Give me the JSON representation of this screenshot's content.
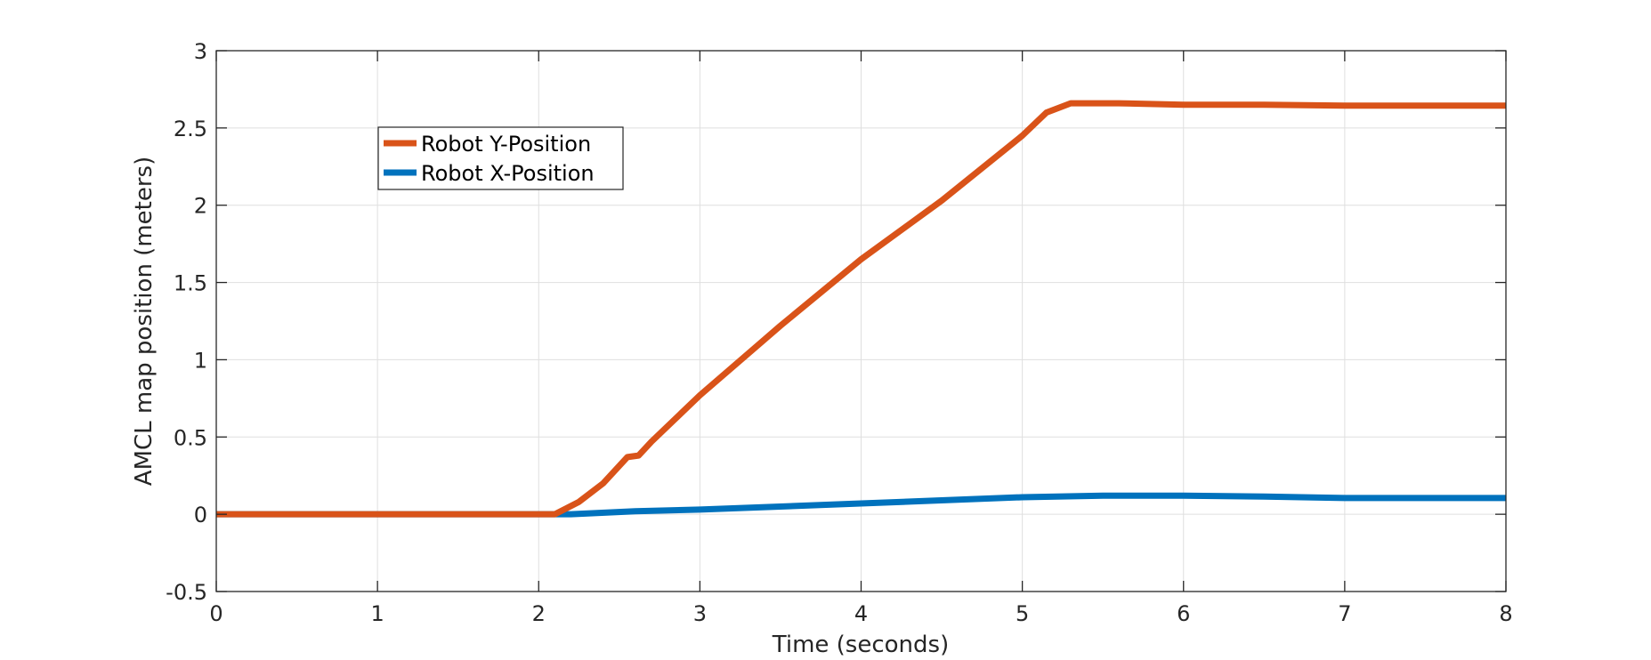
{
  "chart_data": {
    "type": "line",
    "xlabel": "Time (seconds)",
    "ylabel": "AMCL map position (meters)",
    "xlim": [
      0,
      8
    ],
    "ylim": [
      -0.5,
      3
    ],
    "xticks": [
      0,
      1,
      2,
      3,
      4,
      5,
      6,
      7,
      8
    ],
    "yticks": [
      -0.5,
      0,
      0.5,
      1,
      1.5,
      2,
      2.5,
      3
    ],
    "xtick_labels": [
      "0",
      "1",
      "2",
      "3",
      "4",
      "5",
      "6",
      "7",
      "8"
    ],
    "ytick_labels": [
      "-0.5",
      "0",
      "0.5",
      "1",
      "1.5",
      "2",
      "2.5",
      "3"
    ],
    "grid": true,
    "legend_position": "top-left",
    "series": [
      {
        "name": "Robot Y-Position",
        "color": "#D95319",
        "points": [
          [
            0,
            0
          ],
          [
            2.1,
            0
          ],
          [
            2.25,
            0.08
          ],
          [
            2.4,
            0.2
          ],
          [
            2.55,
            0.37
          ],
          [
            2.62,
            0.38
          ],
          [
            2.7,
            0.47
          ],
          [
            3.0,
            0.77
          ],
          [
            3.5,
            1.22
          ],
          [
            4.0,
            1.65
          ],
          [
            4.5,
            2.03
          ],
          [
            5.0,
            2.45
          ],
          [
            5.15,
            2.6
          ],
          [
            5.3,
            2.66
          ],
          [
            5.6,
            2.66
          ],
          [
            6.0,
            2.65
          ],
          [
            6.5,
            2.65
          ],
          [
            7.0,
            2.645
          ],
          [
            8.0,
            2.645
          ]
        ]
      },
      {
        "name": "Robot X-Position",
        "color": "#0072BD",
        "points": [
          [
            0,
            0
          ],
          [
            2.2,
            0
          ],
          [
            2.6,
            0.02
          ],
          [
            3.0,
            0.03
          ],
          [
            4.0,
            0.07
          ],
          [
            5.0,
            0.11
          ],
          [
            5.5,
            0.12
          ],
          [
            6.0,
            0.12
          ],
          [
            6.5,
            0.115
          ],
          [
            7.0,
            0.105
          ],
          [
            8.0,
            0.105
          ]
        ]
      }
    ]
  }
}
